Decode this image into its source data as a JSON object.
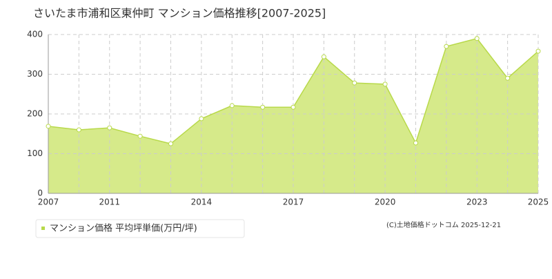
{
  "chart_data": {
    "type": "area",
    "title": "さいたま市浦和区東仲町 マンション価格推移[2007-2025]",
    "categories": [
      "2007",
      null,
      "2011",
      null,
      null,
      "2014",
      null,
      null,
      "2017",
      null,
      null,
      "2020",
      null,
      null,
      "2023",
      null,
      "2025"
    ],
    "series": [
      {
        "name": "マンション価格 平均坪単価(万円/坪)",
        "color": "#d6ea8a",
        "values": [
          169,
          160,
          165,
          144,
          125,
          188,
          221,
          217,
          217,
          344,
          278,
          275,
          127,
          370,
          390,
          290,
          358
        ]
      }
    ],
    "ylim": [
      0,
      400
    ],
    "yticks": [
      0,
      100,
      200,
      300,
      400
    ],
    "grid": true,
    "credit": "(C)土地価格ドットコム 2025-12-21"
  }
}
